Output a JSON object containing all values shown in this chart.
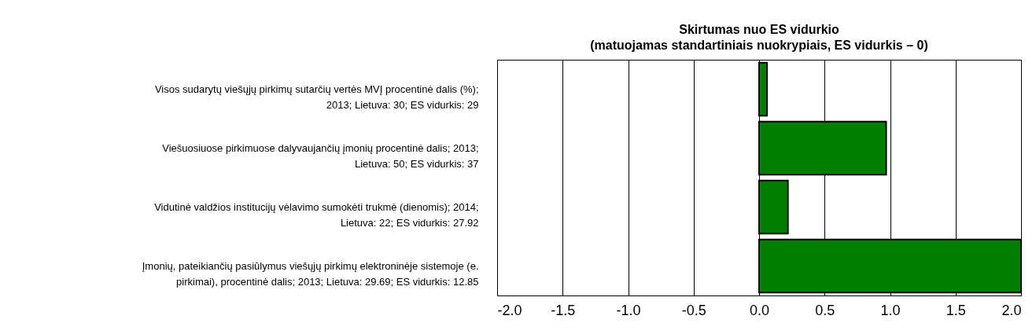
{
  "chart_data": {
    "type": "bar",
    "orientation": "horizontal",
    "title": "Skirtumas nuo ES vidurkio",
    "subtitle": "(matuojamas standartiniais nuokrypiais, ES vidurkis – 0)",
    "categories": [
      "Visos sudarytų viešųjų pirkimų sutarčių vertės MVĮ procentinė dalis (%); 2013; Lietuva: 30; ES vidurkis: 29",
      "Viešuosiuose pirkimuose dalyvaujančių įmonių procentinė dalis; 2013; Lietuva: 50; ES vidurkis: 37",
      "Vidutinė valdžios institucijų vėlavimo sumokėti trukmė (dienomis); 2014; Lietuva: 22; ES vidurkis: 27.92",
      "Įmonių, pateikiančių pasiūlymus viešųjų pirkimų elektroninėje sistemoje (e. pirkimai), procentinė dalis; 2013; Lietuva: 29.69; ES vidurkis: 12.85"
    ],
    "values": [
      0.06,
      0.97,
      0.22,
      2.0
    ],
    "color": "#008000",
    "xlim": [
      -2,
      2
    ],
    "xticks": [
      {
        "value": -2,
        "label": "-2.0"
      },
      {
        "value": -1.5,
        "label": "-1.5"
      },
      {
        "value": -1,
        "label": "-1.0"
      },
      {
        "value": -0.5,
        "label": "-0.5"
      },
      {
        "value": 0,
        "label": "0.0"
      },
      {
        "value": 0.5,
        "label": "0.5"
      },
      {
        "value": 1,
        "label": "1.0"
      },
      {
        "value": 1.5,
        "label": "1.5"
      },
      {
        "value": 2,
        "label": "2.0"
      }
    ],
    "grid": "x"
  }
}
